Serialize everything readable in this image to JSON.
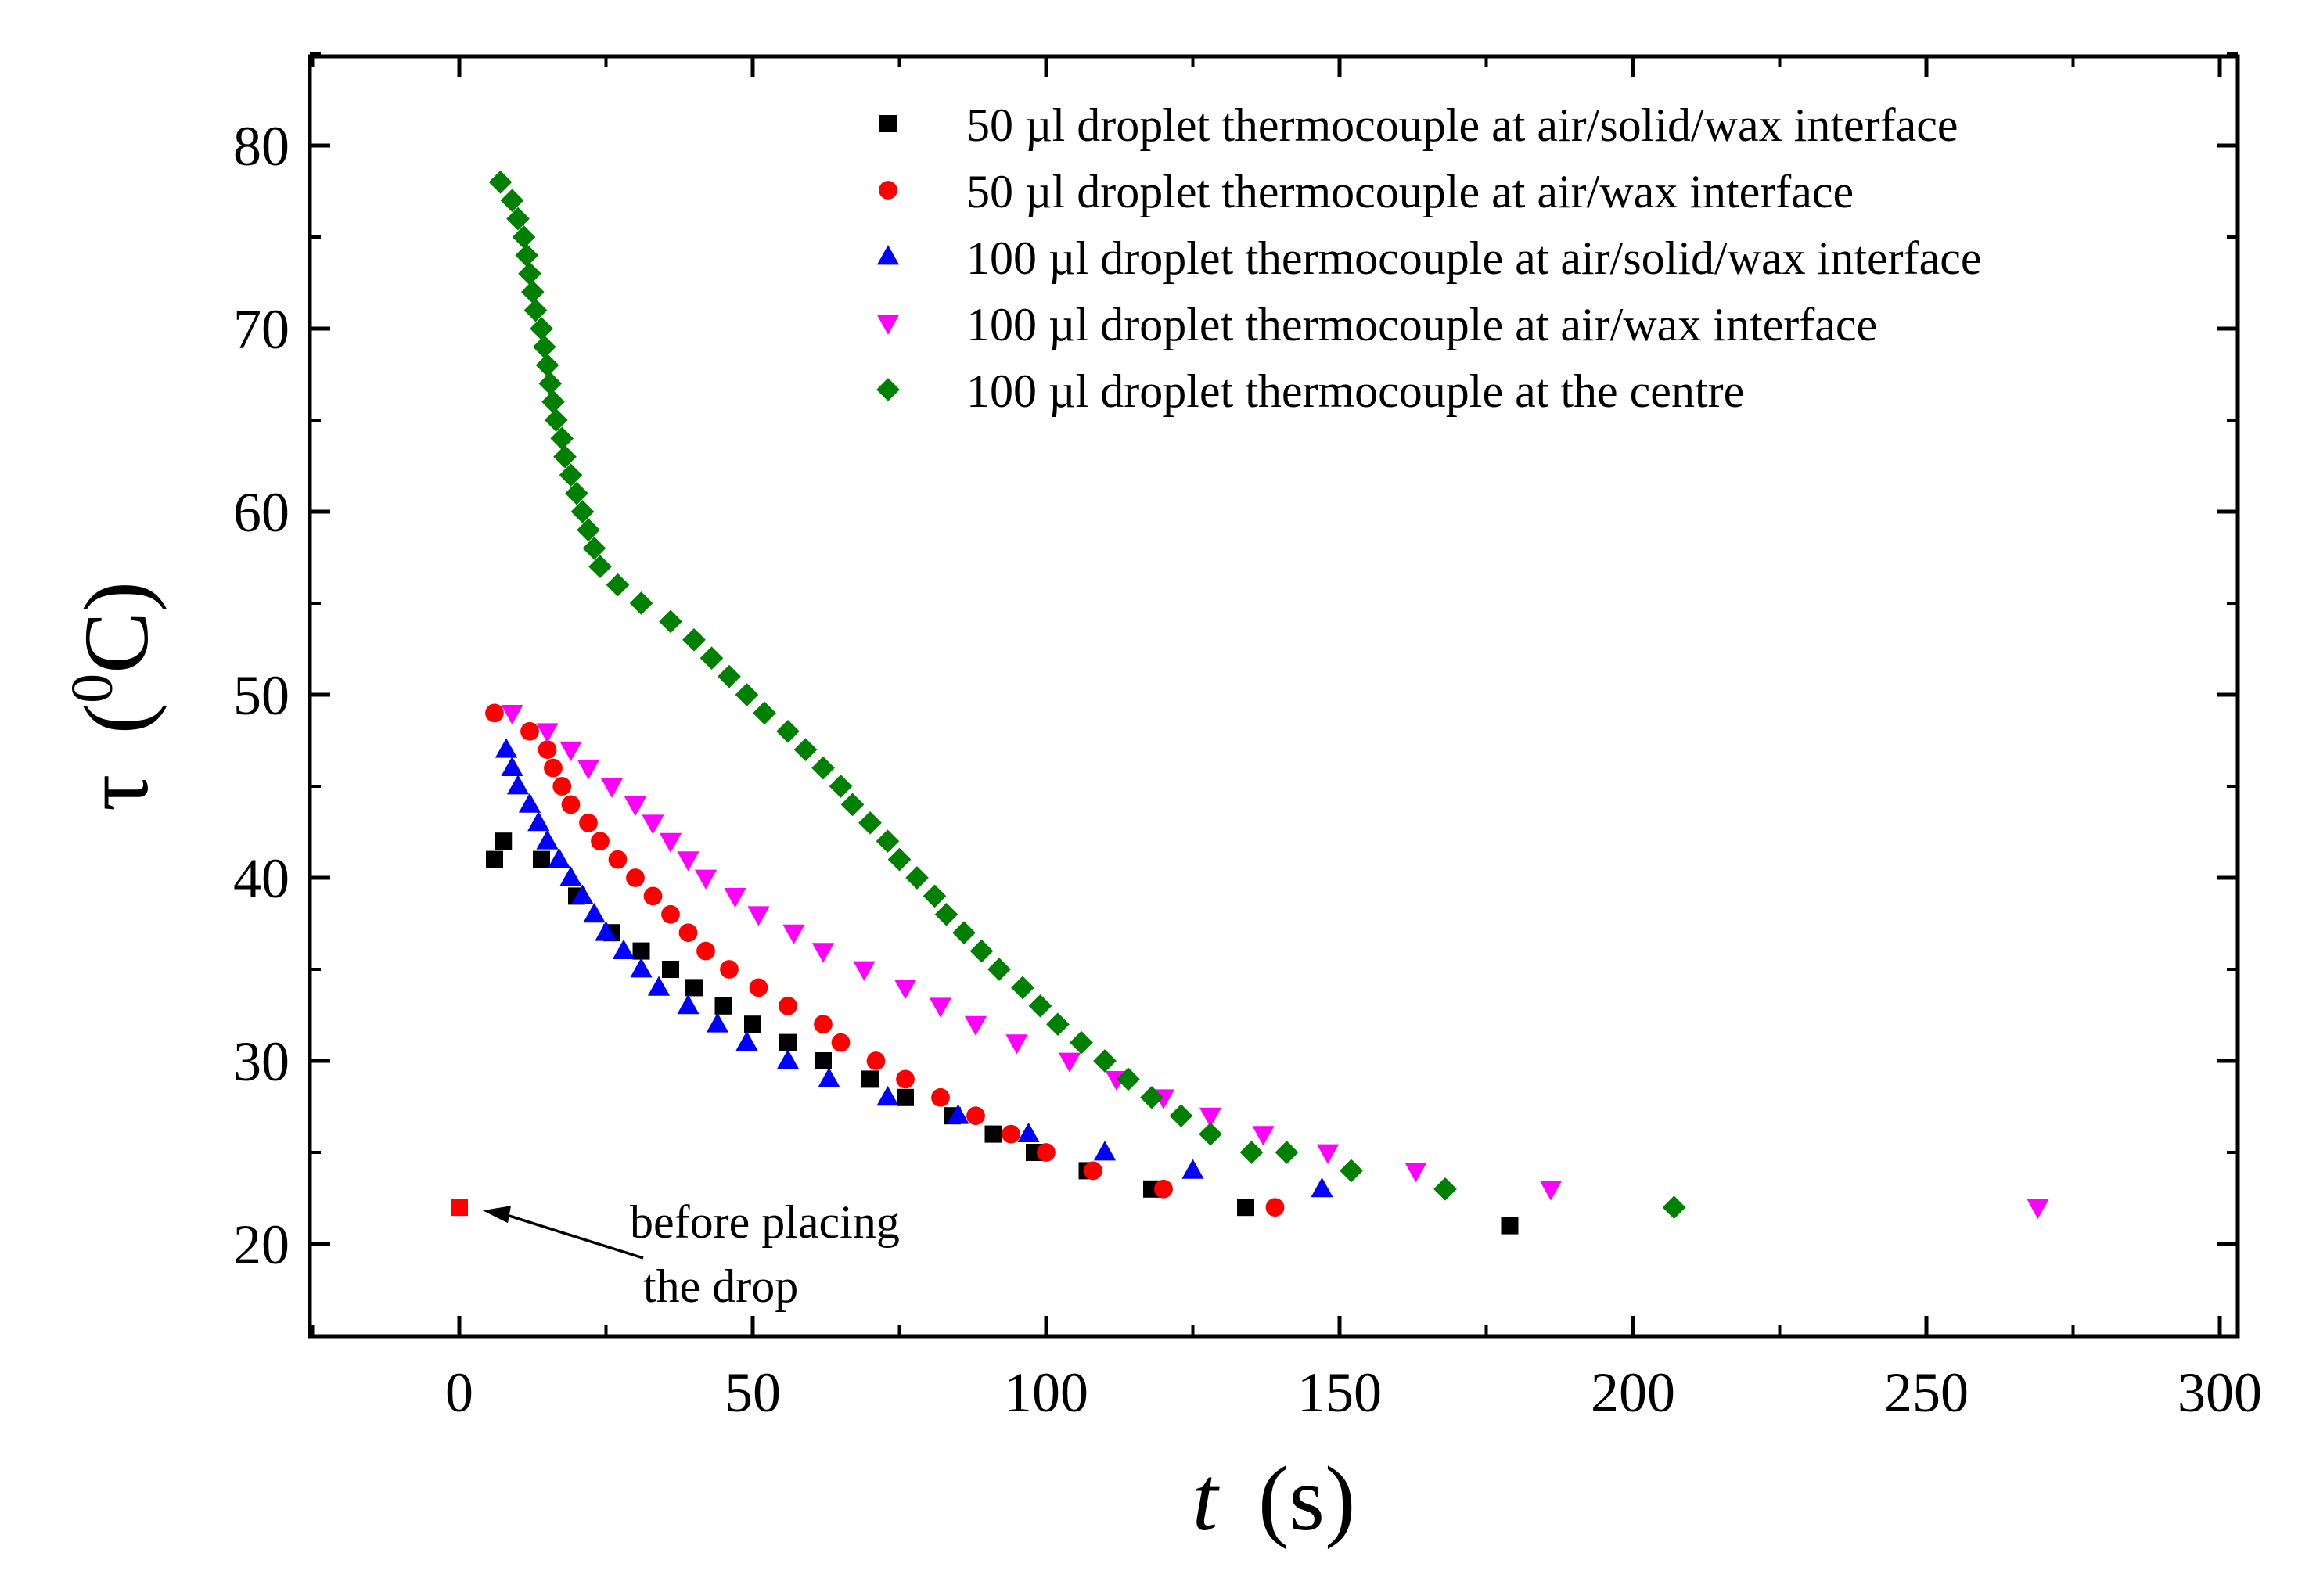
{
  "chart_data": {
    "type": "scatter",
    "title": "",
    "xlabel": {
      "var": "t",
      "unit": "(s)"
    },
    "ylabel": {
      "var": "τ",
      "unit_sup": "0",
      "unit_rest": "C"
    },
    "xlim": [
      -25,
      300
    ],
    "ylim": [
      15,
      85
    ],
    "xticks": [
      0,
      50,
      100,
      150,
      200,
      250,
      300
    ],
    "yticks": [
      20,
      30,
      40,
      50,
      60,
      70,
      80
    ],
    "grid": false,
    "legend_position": "top-right",
    "series": [
      {
        "name": "50 µl droplet thermocouple at air/solid/wax interface",
        "marker": "square",
        "color": "#000000",
        "points": [
          [
            6,
            41
          ],
          [
            7.5,
            42
          ],
          [
            14,
            41
          ],
          [
            20,
            39
          ],
          [
            26,
            37
          ],
          [
            31,
            36
          ],
          [
            36,
            35
          ],
          [
            40,
            34
          ],
          [
            45,
            33
          ],
          [
            50,
            32
          ],
          [
            56,
            31
          ],
          [
            62,
            30
          ],
          [
            70,
            29
          ],
          [
            76,
            28
          ],
          [
            84,
            27
          ],
          [
            91,
            26
          ],
          [
            98,
            25
          ],
          [
            107,
            24
          ],
          [
            118,
            23
          ],
          [
            134,
            22
          ],
          [
            179,
            21
          ]
        ]
      },
      {
        "name": "50 µl droplet thermocouple at air/wax interface",
        "marker": "circle",
        "color": "#ff0000",
        "points": [
          [
            6,
            49
          ],
          [
            12,
            48
          ],
          [
            15,
            47
          ],
          [
            16,
            46
          ],
          [
            17.5,
            45
          ],
          [
            19,
            44
          ],
          [
            22,
            43
          ],
          [
            24,
            42
          ],
          [
            27,
            41
          ],
          [
            30,
            40
          ],
          [
            33,
            39
          ],
          [
            36,
            38
          ],
          [
            39,
            37
          ],
          [
            42,
            36
          ],
          [
            46,
            35
          ],
          [
            51,
            34
          ],
          [
            56,
            33
          ],
          [
            62,
            32
          ],
          [
            65,
            31
          ],
          [
            71,
            30
          ],
          [
            76,
            29
          ],
          [
            82,
            28
          ],
          [
            88,
            27
          ],
          [
            94,
            26
          ],
          [
            100,
            25
          ],
          [
            108,
            24
          ],
          [
            120,
            23
          ],
          [
            139,
            22
          ]
        ]
      },
      {
        "name": "100 µl droplet thermocouple at air/solid/wax interface",
        "marker": "triangle-up",
        "color": "#0000ff",
        "points": [
          [
            8,
            47
          ],
          [
            9,
            46
          ],
          [
            10,
            45
          ],
          [
            12,
            44
          ],
          [
            13.5,
            43
          ],
          [
            15,
            42
          ],
          [
            17,
            41
          ],
          [
            19,
            40
          ],
          [
            21,
            39
          ],
          [
            23,
            38
          ],
          [
            25,
            37
          ],
          [
            28,
            36
          ],
          [
            31,
            35
          ],
          [
            34,
            34
          ],
          [
            39,
            33
          ],
          [
            44,
            32
          ],
          [
            49,
            31
          ],
          [
            56,
            30
          ],
          [
            63,
            29
          ],
          [
            73,
            28
          ],
          [
            85,
            27
          ],
          [
            97,
            26
          ],
          [
            110,
            25
          ],
          [
            125,
            24
          ],
          [
            147,
            23
          ]
        ]
      },
      {
        "name": "100 µl droplet thermocouple at air/wax interface",
        "marker": "triangle-down",
        "color": "#ff00ff",
        "points": [
          [
            9,
            49
          ],
          [
            15,
            48
          ],
          [
            19,
            47
          ],
          [
            22,
            46
          ],
          [
            26,
            45
          ],
          [
            30,
            44
          ],
          [
            33,
            43
          ],
          [
            36,
            42
          ],
          [
            39,
            41
          ],
          [
            42,
            40
          ],
          [
            47,
            39
          ],
          [
            51,
            38
          ],
          [
            57,
            37
          ],
          [
            62,
            36
          ],
          [
            69,
            35
          ],
          [
            76,
            34
          ],
          [
            82,
            33
          ],
          [
            88,
            32
          ],
          [
            95,
            31
          ],
          [
            104,
            30
          ],
          [
            112,
            29
          ],
          [
            120,
            28
          ],
          [
            128,
            27
          ],
          [
            137,
            26
          ],
          [
            148,
            25
          ],
          [
            163,
            24
          ],
          [
            186,
            23
          ],
          [
            269,
            22
          ]
        ]
      },
      {
        "name": "100 µl droplet thermocouple at the centre",
        "marker": "diamond",
        "color": "#008000",
        "points": [
          [
            7,
            78
          ],
          [
            9,
            77
          ],
          [
            10,
            76
          ],
          [
            11,
            75
          ],
          [
            11.5,
            74
          ],
          [
            12,
            73
          ],
          [
            12.5,
            72
          ],
          [
            13,
            71
          ],
          [
            14,
            70
          ],
          [
            14.5,
            69
          ],
          [
            15,
            68
          ],
          [
            15.5,
            67
          ],
          [
            16,
            66
          ],
          [
            16.5,
            65
          ],
          [
            17.5,
            64
          ],
          [
            18,
            63
          ],
          [
            19,
            62
          ],
          [
            20,
            61
          ],
          [
            21,
            60
          ],
          [
            22,
            59
          ],
          [
            23,
            58
          ],
          [
            24,
            57
          ],
          [
            27,
            56
          ],
          [
            31,
            55
          ],
          [
            36,
            54
          ],
          [
            40,
            53
          ],
          [
            43,
            52
          ],
          [
            46,
            51
          ],
          [
            49,
            50
          ],
          [
            52,
            49
          ],
          [
            56,
            48
          ],
          [
            59,
            47
          ],
          [
            62,
            46
          ],
          [
            65,
            45
          ],
          [
            67,
            44
          ],
          [
            70,
            43
          ],
          [
            73,
            42
          ],
          [
            75,
            41
          ],
          [
            78,
            40
          ],
          [
            81,
            39
          ],
          [
            83,
            38
          ],
          [
            86,
            37
          ],
          [
            89,
            36
          ],
          [
            92,
            35
          ],
          [
            96,
            34
          ],
          [
            99,
            33
          ],
          [
            102,
            32
          ],
          [
            106,
            31
          ],
          [
            110,
            30
          ],
          [
            114,
            29
          ],
          [
            118,
            28
          ],
          [
            123,
            27
          ],
          [
            128,
            26
          ],
          [
            135,
            25
          ],
          [
            141,
            25
          ],
          [
            152,
            24
          ],
          [
            168,
            23
          ],
          [
            207,
            22
          ]
        ]
      },
      {
        "name": "before placing the drop",
        "marker": "square",
        "color": "#ff0000",
        "in_legend": false,
        "points": [
          [
            0,
            22
          ]
        ]
      }
    ],
    "annotations": [
      {
        "lines": [
          "before placing",
          "the drop"
        ],
        "arrow_to": [
          0,
          22
        ]
      }
    ]
  }
}
